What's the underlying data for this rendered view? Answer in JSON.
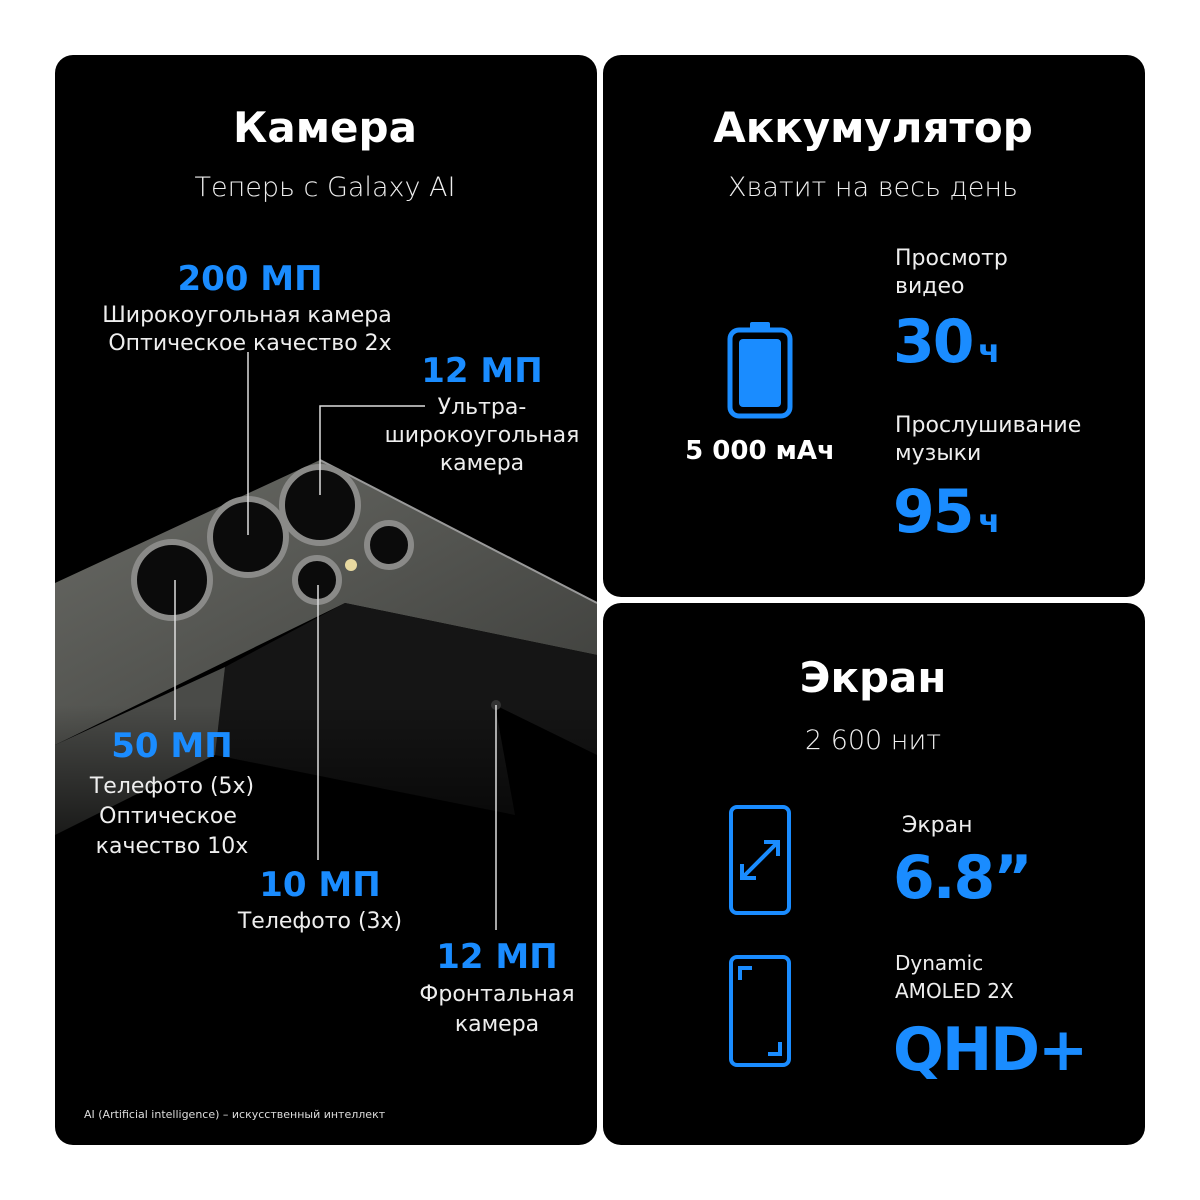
{
  "colors": {
    "accent": "#1a8cff",
    "panel": "#000000",
    "background": "#ffffff"
  },
  "camera": {
    "title": "Камера",
    "subtitle": "Теперь с Galaxy AI",
    "main": {
      "mp": "200 МП",
      "line1": "Широкоугольная камера",
      "line2": "Оптическое качество 2x"
    },
    "ultrawide": {
      "mp": "12 МП",
      "line1": "Ультра-",
      "line2": "широкоугольная",
      "line3": "камера"
    },
    "tele5": {
      "mp": "50 МП",
      "line1": "Телефото (5x)",
      "line2": "Оптическое",
      "line3": "качество 10x"
    },
    "tele3": {
      "mp": "10 МП",
      "line1": "Телефото (3x)"
    },
    "front": {
      "mp": "12 МП",
      "line1": "Фронтальная",
      "line2": "камера"
    },
    "footnote": "AI (Artificial intelligence) – искусственный интеллект"
  },
  "battery": {
    "title": "Аккумулятор",
    "subtitle": "Хватит на весь день",
    "icon": "battery-full-icon",
    "capacity": "5 000 мАч",
    "video": {
      "line1": "Просмотр",
      "line2": "видео",
      "value": "30",
      "unit": "ч"
    },
    "music": {
      "line1": "Прослушивание",
      "line2": "музыки",
      "value": "95",
      "unit": "ч"
    }
  },
  "screen": {
    "title": "Экран",
    "subtitle": "2 600 нит",
    "size": {
      "icon": "phone-diagonal-icon",
      "label": "Экран",
      "value": "6.8”"
    },
    "display": {
      "icon": "phone-corners-icon",
      "line1": "Dynamic",
      "line2": "AMOLED 2X",
      "value": "QHD+"
    }
  }
}
